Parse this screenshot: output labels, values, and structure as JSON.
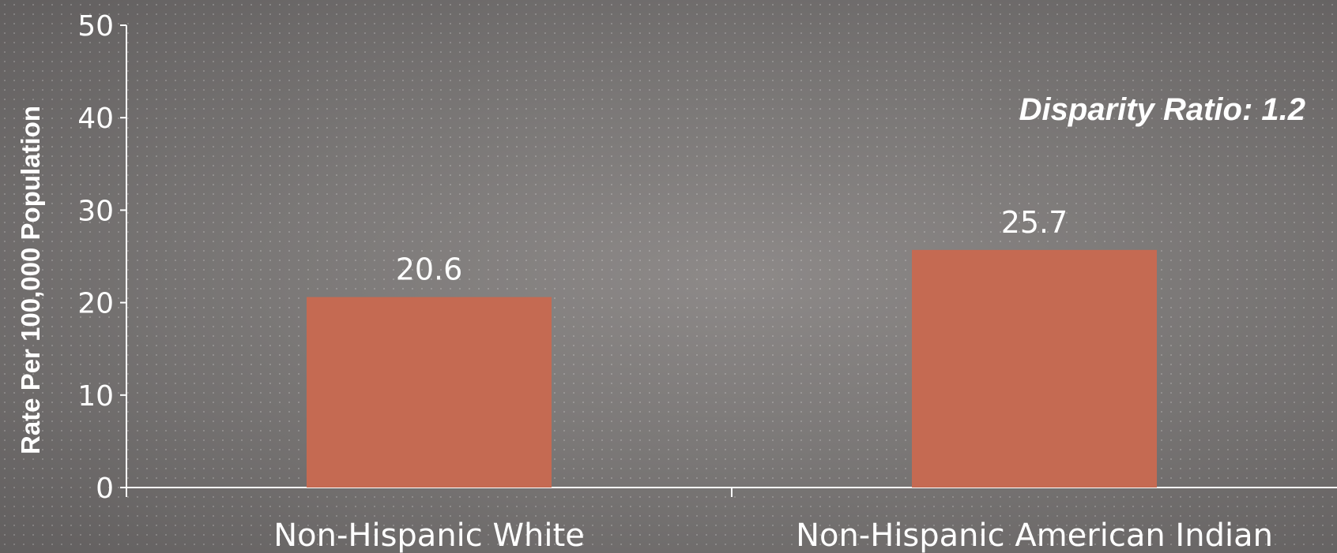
{
  "chart_data": {
    "type": "bar",
    "categories": [
      "Non-Hispanic White",
      "Non-Hispanic American Indian"
    ],
    "values": [
      20.6,
      25.7
    ],
    "data_labels": [
      "20.6",
      "25.7"
    ],
    "title": "",
    "xlabel": "",
    "ylabel": "Rate Per 100,000 Population",
    "ylim": [
      0,
      50
    ],
    "yticks": [
      "0",
      "10",
      "20",
      "30",
      "40",
      "50"
    ],
    "annotation": "Disparity Ratio: 1.2",
    "grid": false,
    "legend": "none",
    "bar_color": "#c56a52"
  },
  "colors": {
    "axis": "#ffffff",
    "text": "#ffffff"
  }
}
